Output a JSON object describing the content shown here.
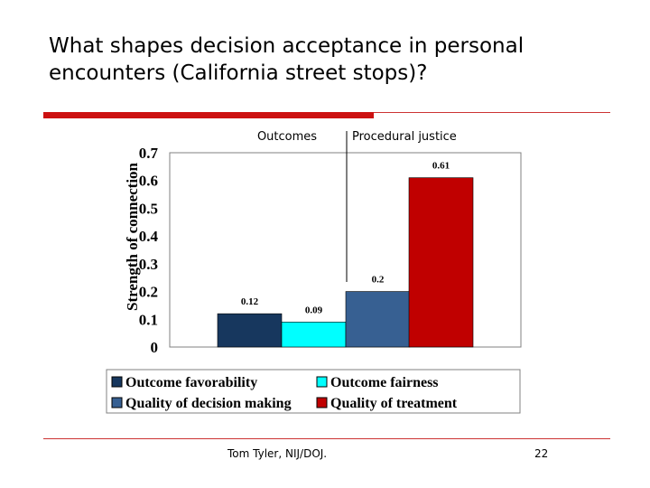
{
  "slide": {
    "title": "What shapes decision acceptance in personal encounters (California street stops)?",
    "footer_author": "Tom Tyler, NIJ/DOJ.",
    "page_number": "22"
  },
  "colors": {
    "accent_red": "#cc1111",
    "outcome_favorability": "#17375e",
    "outcome_fairness": "#00ffff",
    "quality_decision": "#376092",
    "quality_treatment": "#c00000"
  },
  "chart_data": {
    "type": "bar",
    "ylabel": "Strength of connection",
    "ylim": [
      0,
      0.7
    ],
    "yticks": [
      "0",
      "0.1",
      "0.2",
      "0.3",
      "0.4",
      "0.5",
      "0.6",
      "0.7"
    ],
    "groups": [
      "Outcomes",
      "Procedural justice"
    ],
    "series": [
      {
        "name": "Outcome favorability",
        "value": 0.12,
        "label": "0.12",
        "group": 0,
        "color": "#17375e"
      },
      {
        "name": "Outcome fairness",
        "value": 0.09,
        "label": "0.09",
        "group": 0,
        "color": "#00ffff"
      },
      {
        "name": "Quality of decision making",
        "value": 0.2,
        "label": "0.2",
        "group": 1,
        "color": "#376092"
      },
      {
        "name": "Quality of treatment",
        "value": 0.61,
        "label": "0.61",
        "group": 1,
        "color": "#c00000"
      }
    ],
    "legend": [
      "Outcome favorability",
      "Outcome fairness",
      "Quality of decision making",
      "Quality of treatment"
    ],
    "legend_position": "bottom",
    "grid": false
  }
}
